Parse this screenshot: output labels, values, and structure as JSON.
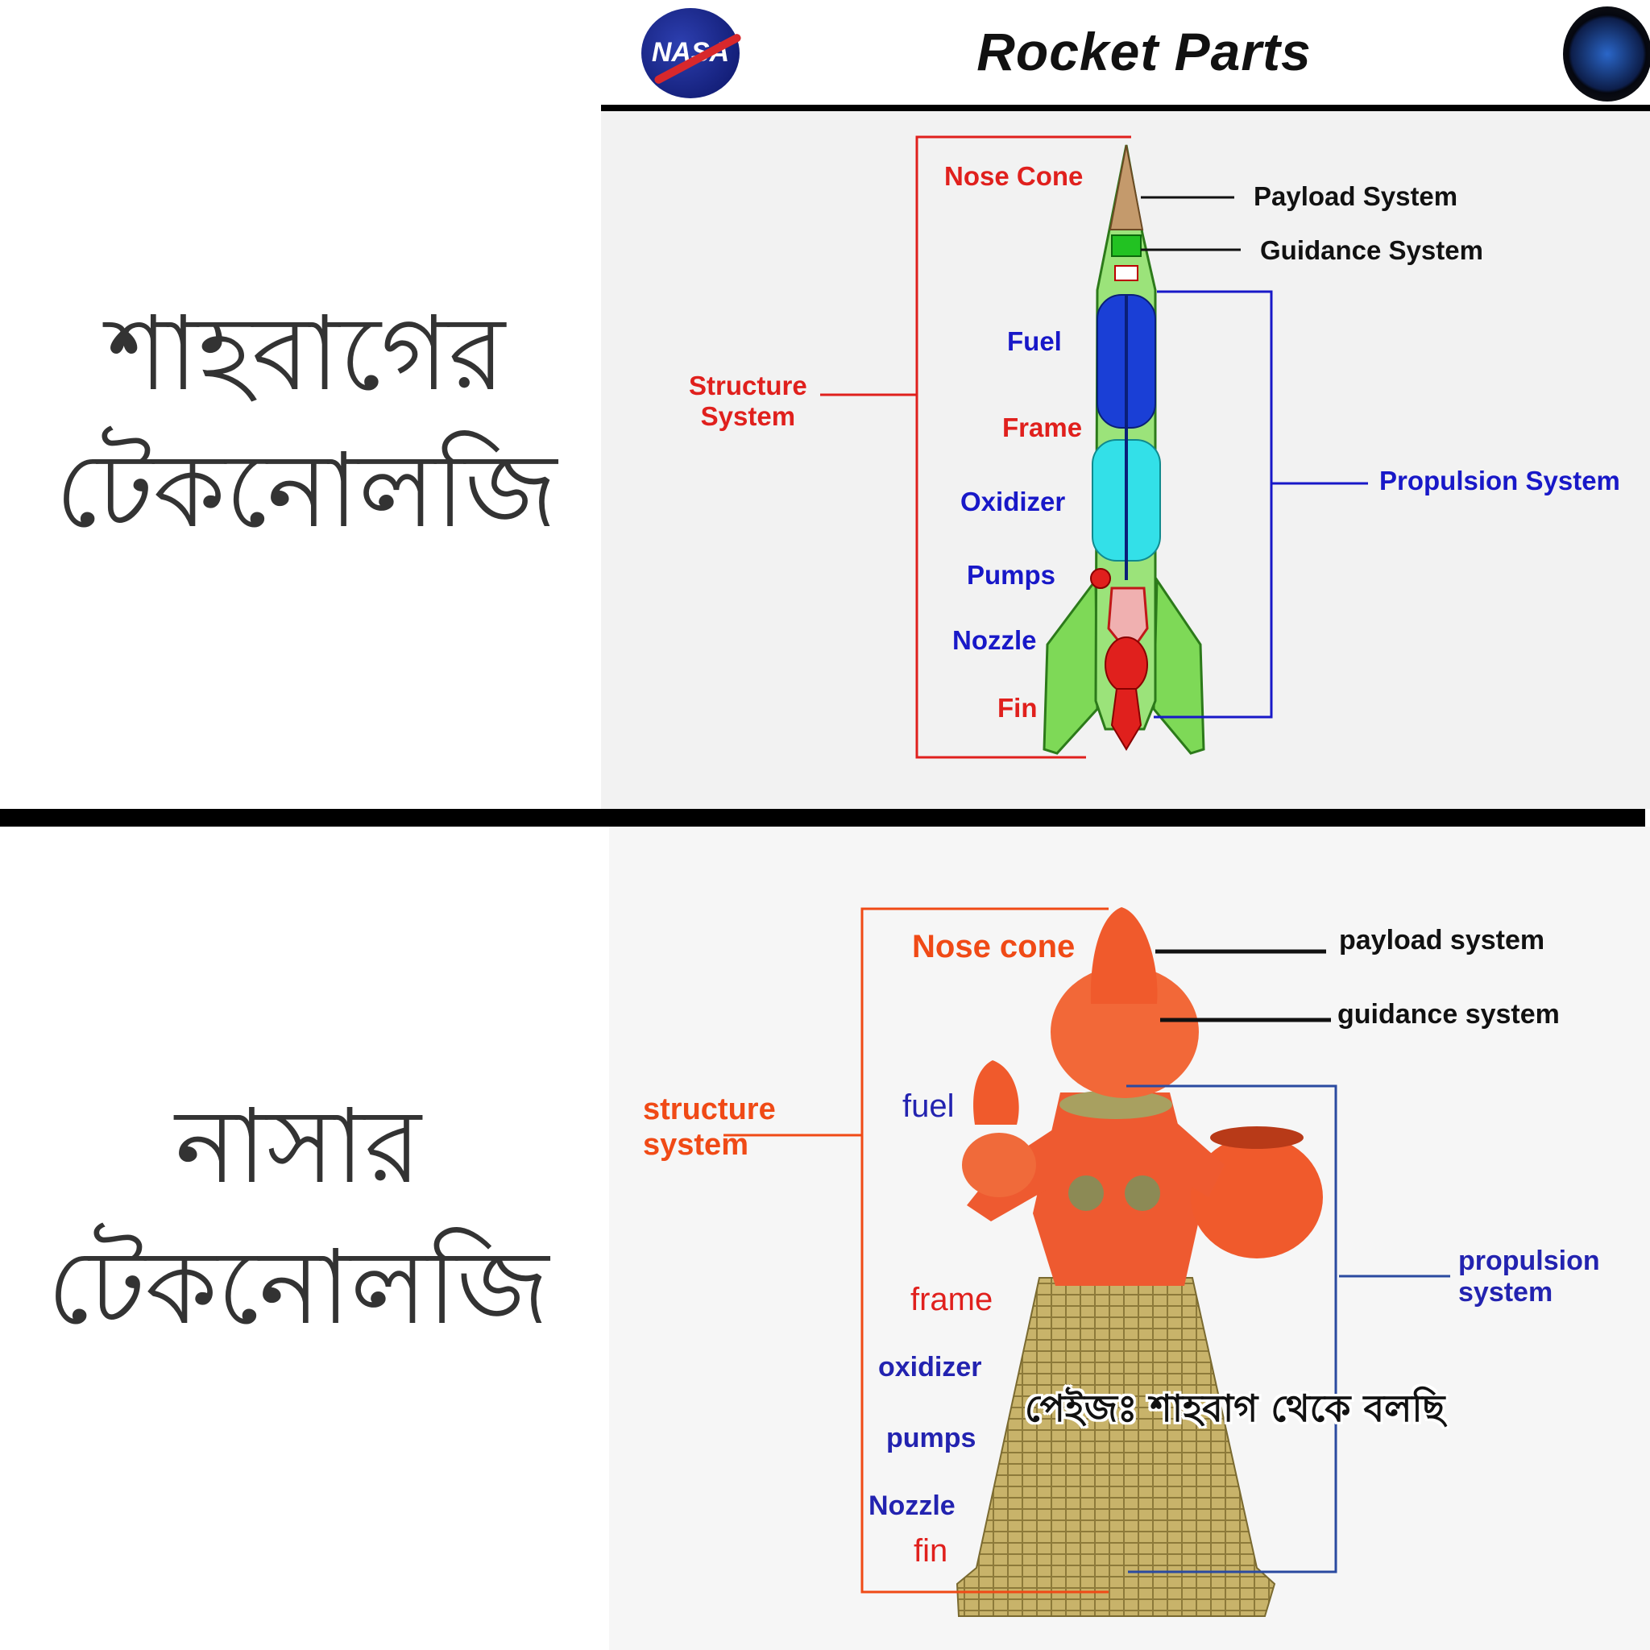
{
  "top": {
    "left_caption_line1": "শাহবাগের",
    "left_caption_line2": "টেকনোলজি",
    "title": "Rocket Parts",
    "nasa_logo_text": "NASA",
    "labels": {
      "nose_cone": "Nose Cone",
      "payload": "Payload  System",
      "guidance": "Guidance  System",
      "structure_line1": "Structure",
      "structure_line2": "System",
      "fuel": "Fuel",
      "frame": "Frame",
      "oxidizer": "Oxidizer",
      "pumps": "Pumps",
      "nozzle": "Nozzle",
      "fin": "Fin",
      "propulsion": "Propulsion  System"
    }
  },
  "bottom": {
    "left_caption_line1": "নাসার",
    "left_caption_line2": "টেকনোলজি",
    "watermark": "পেইজঃ শাহবাগ থেকে বলছি",
    "labels": {
      "nose_cone": "Nose cone",
      "payload": "payload system",
      "guidance": "guidance system",
      "structure_line1": "structure",
      "structure_line2": "system",
      "fuel": "fuel",
      "frame": "frame",
      "oxidizer": "oxidizer",
      "pumps": "pumps",
      "nozzle": "Nozzle",
      "fin": "fin",
      "propulsion_line1": "propulsion",
      "propulsion_line2": "system"
    }
  },
  "colors": {
    "structure_red": "#e0201d",
    "propulsion_blue": "#1818c8",
    "rocket_green": "#7ed957",
    "fuel_blue": "#1a3fd6",
    "oxidizer_cyan": "#33e0e8",
    "divider": "#000000"
  }
}
